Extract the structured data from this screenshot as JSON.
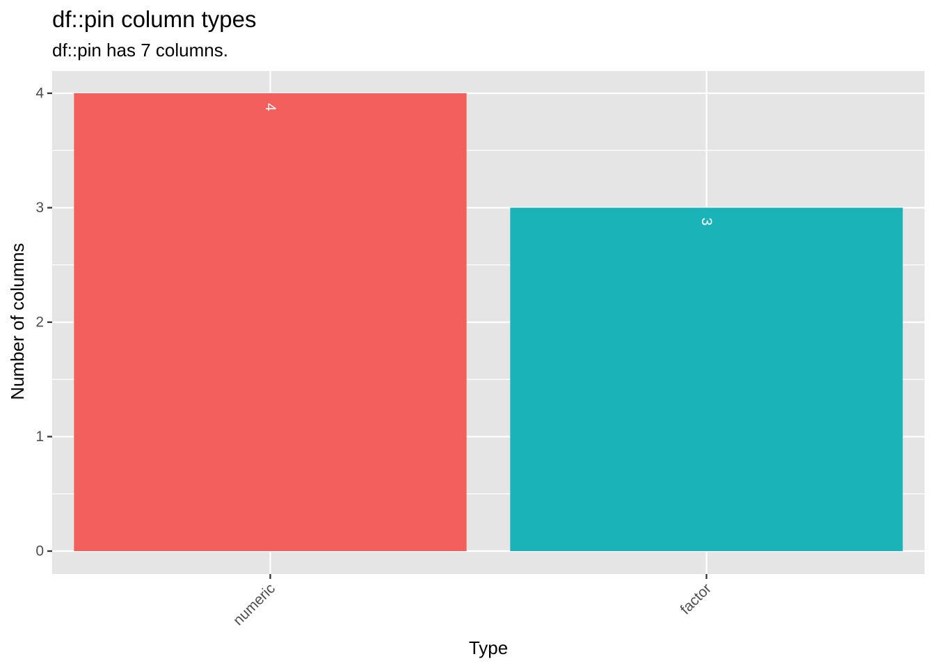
{
  "chart_data": {
    "type": "bar",
    "title": "df::pin column types",
    "subtitle": "df::pin has 7 columns.",
    "xlabel": "Type",
    "ylabel": "Number of columns",
    "categories": [
      "numeric",
      "factor"
    ],
    "values": [
      4,
      3
    ],
    "data_labels": [
      "4",
      "3"
    ],
    "colors": [
      "#F35F5C",
      "#1AB3B8"
    ],
    "ylim": [
      0,
      4.2
    ],
    "yticks": [
      0,
      1,
      2,
      3,
      4
    ],
    "ytick_labels": [
      "0",
      "1",
      "2",
      "3",
      "4"
    ],
    "grid": true,
    "legend": "none",
    "panel_background": "#E5E5E5",
    "grid_color": "#FFFFFF",
    "x_tick_rotation_deg": -45,
    "data_label_rotation_deg": 90
  }
}
